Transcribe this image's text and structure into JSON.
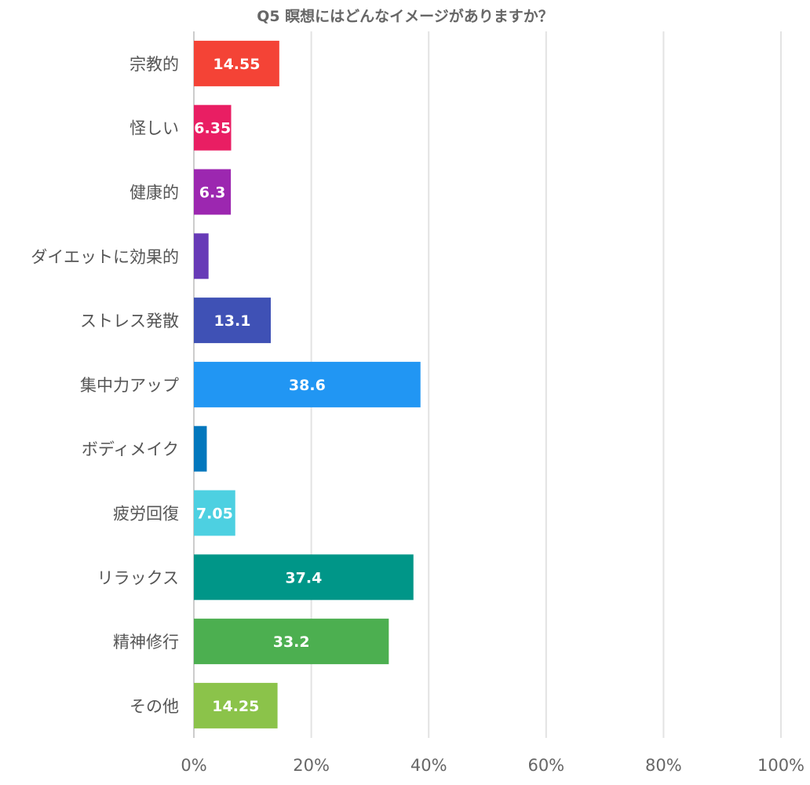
{
  "chart_data": {
    "type": "bar",
    "orientation": "horizontal",
    "title": "Q5 瞑想にはどんなイメージがありますか？",
    "xlabel": "",
    "ylabel": "",
    "xlim": [
      0,
      100
    ],
    "x_ticks": [
      "0%",
      "20%",
      "40%",
      "60%",
      "80%",
      "100%"
    ],
    "x_tick_values": [
      0,
      20,
      40,
      60,
      80,
      100
    ],
    "grid": true,
    "legend": "none",
    "categories": [
      "宗教的",
      "怪しい",
      "健康的",
      "ダイエットに効果的",
      "ストレス発散",
      "集中力アップ",
      "ボディメイク",
      "疲労回復",
      "リラックス",
      "精神修行",
      "その他"
    ],
    "values": [
      14.55,
      6.35,
      6.3,
      2.5,
      13.1,
      38.6,
      2.2,
      7.05,
      37.4,
      33.2,
      14.25
    ],
    "data_labels": [
      "14.55",
      "6.35",
      "6.3",
      "",
      "13.1",
      "38.6",
      "",
      "7.05",
      "37.4",
      "33.2",
      "14.25"
    ],
    "colors": [
      "#f44336",
      "#e91e63",
      "#9c27b0",
      "#673ab7",
      "#3f51b5",
      "#2196f3",
      "#0277bd",
      "#4dd0e1",
      "#009688",
      "#4caf50",
      "#8bc34a"
    ]
  }
}
